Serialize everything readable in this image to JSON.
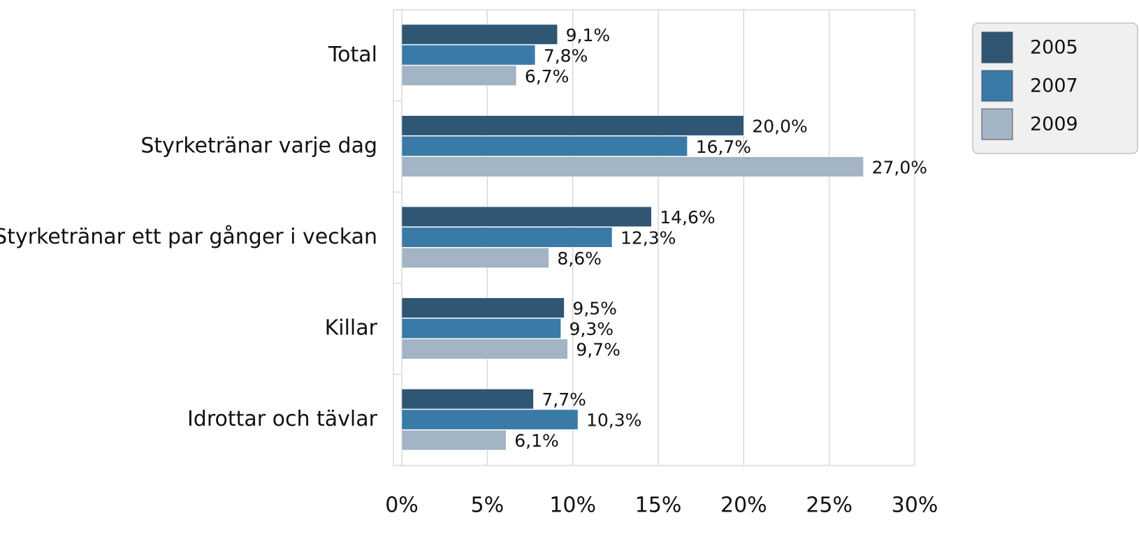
{
  "chart_data": {
    "type": "bar",
    "orientation": "horizontal",
    "categories": [
      "Total",
      "Styrketränar varje dag",
      "Styrketränar ett par gånger i veckan",
      "Killar",
      "Idrottar och tävlar"
    ],
    "series": [
      {
        "name": "2005",
        "color": "#2f5673",
        "values": [
          9.1,
          20.0,
          14.6,
          9.5,
          7.7
        ],
        "value_labels": [
          "9,1%",
          "20,0%",
          "14,6%",
          "9,5%",
          "7,7%"
        ]
      },
      {
        "name": "2007",
        "color": "#3a7aa6",
        "values": [
          7.8,
          16.7,
          12.3,
          9.3,
          10.3
        ],
        "value_labels": [
          "7,8%",
          "16,7%",
          "12,3%",
          "9,3%",
          "10,3%"
        ]
      },
      {
        "name": "2009",
        "color": "#a3b4c4",
        "values": [
          6.7,
          27.0,
          8.6,
          9.7,
          6.1
        ],
        "value_labels": [
          "6,7%",
          "27,0%",
          "8,6%",
          "9,7%",
          "6,1%"
        ]
      }
    ],
    "xlim": [
      0,
      30
    ],
    "xticks": [
      {
        "value": 0,
        "label": "0%"
      },
      {
        "value": 5,
        "label": "5%"
      },
      {
        "value": 10,
        "label": "10%"
      },
      {
        "value": 15,
        "label": "15%"
      },
      {
        "value": 20,
        "label": "20%"
      },
      {
        "value": 25,
        "label": "25%"
      },
      {
        "value": 30,
        "label": "30%"
      }
    ],
    "grid": true,
    "legend": "top-right"
  }
}
